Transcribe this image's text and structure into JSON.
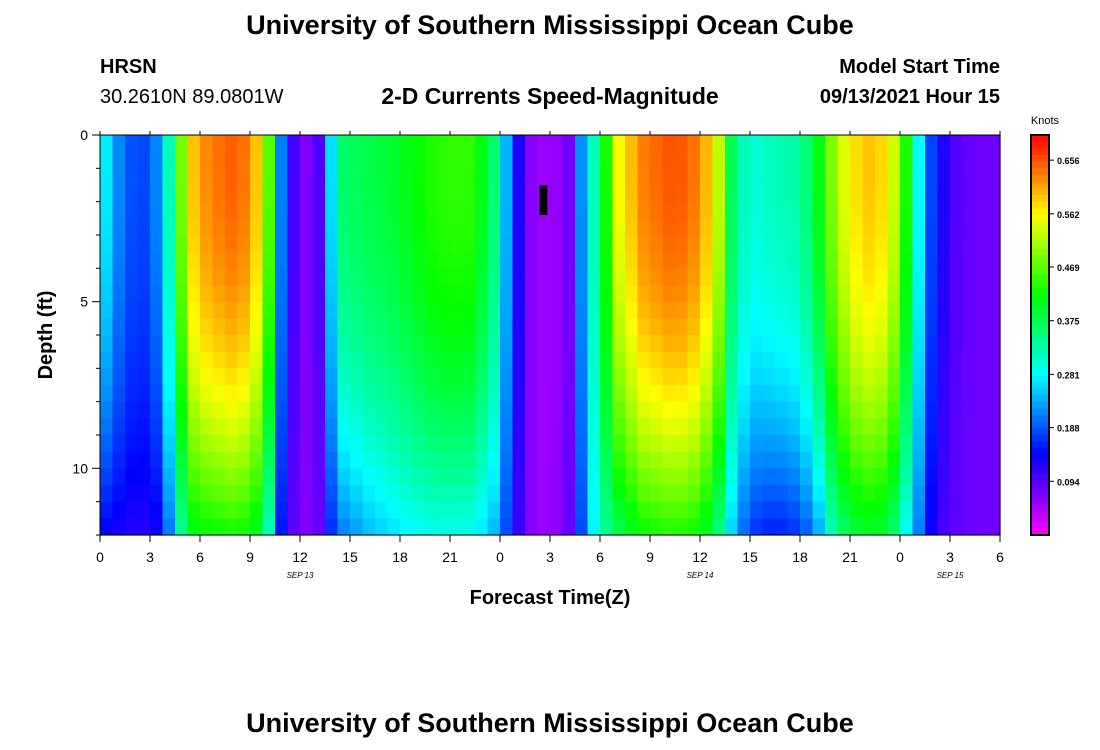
{
  "header": {
    "title": "University of Southern Mississippi Ocean Cube",
    "station": "HRSN",
    "coords": "30.2610N  89.0801W",
    "subtitle": "2-D Currents Speed-Magnitude",
    "model_label": "Model Start Time",
    "model_time": "09/13/2021 Hour 15"
  },
  "footer": {
    "title": "University of Southern Mississippi Ocean Cube"
  },
  "chart_data": {
    "type": "heatmap",
    "title": "2-D Currents Speed-Magnitude",
    "xlabel": "Forecast Time(Z)",
    "ylabel": "Depth (ft)",
    "x_range_hours": [
      0,
      54
    ],
    "y_range_ft": [
      0,
      12
    ],
    "x_tick_labels": [
      "0",
      "3",
      "6",
      "9",
      "12",
      "15",
      "18",
      "21",
      "0",
      "3",
      "6",
      "9",
      "12",
      "15",
      "18",
      "21",
      "0",
      "3",
      "6"
    ],
    "y_ticks": [
      0,
      5,
      10
    ],
    "date_labels": [
      {
        "label": "SEP 13",
        "hour": 12
      },
      {
        "label": "SEP 14",
        "hour": 36
      },
      {
        "label": "SEP 15",
        "hour": 51
      }
    ],
    "marker": {
      "hour": 26.6,
      "depth_from": 1.5,
      "depth_to": 2.4
    },
    "colorbar": {
      "title": "Knots",
      "min": 0.0,
      "max": 0.7,
      "ticks": [
        0.656,
        0.562,
        0.469,
        0.375,
        0.281,
        0.188,
        0.094
      ]
    },
    "time_profile": [
      {
        "h": 0,
        "surf": 0.3,
        "bot": 0.14
      },
      {
        "h": 1,
        "surf": 0.22,
        "bot": 0.13
      },
      {
        "h": 2,
        "surf": 0.18,
        "bot": 0.12
      },
      {
        "h": 3,
        "surf": 0.18,
        "bot": 0.12
      },
      {
        "h": 3.8,
        "surf": 0.25,
        "bot": 0.14
      },
      {
        "h": 4.5,
        "surf": 0.4,
        "bot": 0.28
      },
      {
        "h": 5.3,
        "surf": 0.58,
        "bot": 0.4
      },
      {
        "h": 6.5,
        "surf": 0.63,
        "bot": 0.42
      },
      {
        "h": 8,
        "surf": 0.65,
        "bot": 0.43
      },
      {
        "h": 9,
        "surf": 0.63,
        "bot": 0.42
      },
      {
        "h": 9.8,
        "surf": 0.55,
        "bot": 0.38
      },
      {
        "h": 10.4,
        "surf": 0.4,
        "bot": 0.26
      },
      {
        "h": 11,
        "surf": 0.16,
        "bot": 0.12
      },
      {
        "h": 12,
        "surf": 0.07,
        "bot": 0.07
      },
      {
        "h": 13,
        "surf": 0.07,
        "bot": 0.07
      },
      {
        "h": 13.6,
        "surf": 0.2,
        "bot": 0.14
      },
      {
        "h": 14.3,
        "surf": 0.36,
        "bot": 0.2
      },
      {
        "h": 16,
        "surf": 0.38,
        "bot": 0.24
      },
      {
        "h": 18,
        "surf": 0.4,
        "bot": 0.27
      },
      {
        "h": 20,
        "surf": 0.44,
        "bot": 0.29
      },
      {
        "h": 22,
        "surf": 0.45,
        "bot": 0.29
      },
      {
        "h": 23.5,
        "surf": 0.38,
        "bot": 0.25
      },
      {
        "h": 24.5,
        "surf": 0.22,
        "bot": 0.17
      },
      {
        "h": 25.5,
        "surf": 0.07,
        "bot": 0.07
      },
      {
        "h": 27,
        "surf": 0.05,
        "bot": 0.05
      },
      {
        "h": 28.3,
        "surf": 0.08,
        "bot": 0.09
      },
      {
        "h": 29,
        "surf": 0.25,
        "bot": 0.2
      },
      {
        "h": 30,
        "surf": 0.36,
        "bot": 0.32
      },
      {
        "h": 31,
        "surf": 0.55,
        "bot": 0.37
      },
      {
        "h": 32.5,
        "surf": 0.63,
        "bot": 0.42
      },
      {
        "h": 34.5,
        "surf": 0.66,
        "bot": 0.44
      },
      {
        "h": 36,
        "surf": 0.63,
        "bot": 0.42
      },
      {
        "h": 37,
        "surf": 0.55,
        "bot": 0.36
      },
      {
        "h": 38,
        "surf": 0.35,
        "bot": 0.24
      },
      {
        "h": 39,
        "surf": 0.3,
        "bot": 0.17
      },
      {
        "h": 40.5,
        "surf": 0.32,
        "bot": 0.15
      },
      {
        "h": 42,
        "surf": 0.33,
        "bot": 0.17
      },
      {
        "h": 43,
        "surf": 0.4,
        "bot": 0.22
      },
      {
        "h": 44,
        "surf": 0.5,
        "bot": 0.33
      },
      {
        "h": 45,
        "surf": 0.57,
        "bot": 0.38
      },
      {
        "h": 46.5,
        "surf": 0.6,
        "bot": 0.4
      },
      {
        "h": 47.5,
        "surf": 0.55,
        "bot": 0.37
      },
      {
        "h": 48.3,
        "surf": 0.45,
        "bot": 0.29
      },
      {
        "h": 49,
        "surf": 0.3,
        "bot": 0.22
      },
      {
        "h": 50,
        "surf": 0.16,
        "bot": 0.12
      },
      {
        "h": 51,
        "surf": 0.1,
        "bot": 0.09
      },
      {
        "h": 52.5,
        "surf": 0.08,
        "bot": 0.08
      },
      {
        "h": 54,
        "surf": 0.08,
        "bot": 0.08
      }
    ]
  }
}
